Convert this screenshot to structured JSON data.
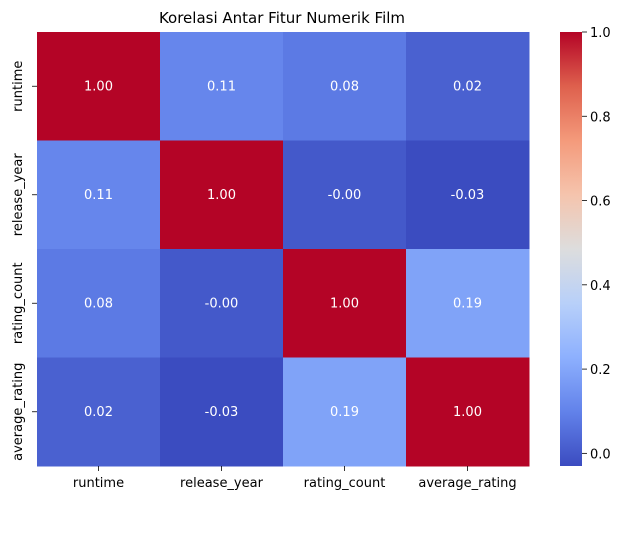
{
  "chart_data": {
    "type": "heatmap",
    "title": "Korelasi Antar Fitur Numerik Film",
    "x_labels": [
      "runtime",
      "release_year",
      "rating_count",
      "average_rating"
    ],
    "y_labels": [
      "runtime",
      "release_year",
      "rating_count",
      "average_rating"
    ],
    "values": [
      [
        1.0,
        0.11,
        0.08,
        0.02
      ],
      [
        0.11,
        1.0,
        -0.0,
        -0.03
      ],
      [
        0.08,
        -0.0,
        1.0,
        0.19
      ],
      [
        0.02,
        -0.03,
        0.19,
        1.0
      ]
    ],
    "annotations": [
      [
        "1.00",
        "0.11",
        "0.08",
        "0.02"
      ],
      [
        "0.11",
        "1.00",
        "-0.00",
        "-0.03"
      ],
      [
        "0.08",
        "-0.00",
        "1.00",
        "0.19"
      ],
      [
        "0.02",
        "-0.03",
        "0.19",
        "1.00"
      ]
    ],
    "colormap": "coolwarm",
    "colorbar": {
      "vmin": -0.03,
      "vmax": 1.0,
      "ticks": [
        0.0,
        0.2,
        0.4,
        0.6,
        0.8,
        1.0
      ],
      "tick_labels": [
        "0.0",
        "0.2",
        "0.4",
        "0.6",
        "0.8",
        "1.0"
      ]
    },
    "annotation_color": "#ffffff"
  }
}
